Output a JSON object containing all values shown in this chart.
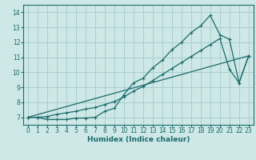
{
  "xlabel": "Humidex (Indice chaleur)",
  "bg_color": "#cde8e6",
  "grid_color": "#aacece",
  "line_color": "#1a6b6b",
  "x_ticks": [
    0,
    1,
    2,
    3,
    4,
    5,
    6,
    7,
    8,
    9,
    10,
    11,
    12,
    13,
    14,
    15,
    16,
    17,
    18,
    19,
    20,
    21,
    22,
    23
  ],
  "y_ticks": [
    7,
    8,
    9,
    10,
    11,
    12,
    13,
    14
  ],
  "xlim": [
    -0.5,
    23.5
  ],
  "ylim": [
    6.5,
    14.5
  ],
  "line1": {
    "x": [
      0,
      1,
      2,
      3,
      4,
      5,
      6,
      7,
      8,
      9,
      10,
      11,
      12,
      13,
      14,
      15,
      16,
      17,
      18,
      19,
      20,
      21,
      22,
      23
    ],
    "y": [
      7.0,
      7.0,
      6.85,
      6.85,
      6.85,
      6.95,
      6.95,
      7.0,
      7.4,
      7.6,
      8.5,
      9.3,
      9.6,
      10.3,
      10.8,
      11.5,
      12.0,
      12.65,
      13.1,
      13.8,
      12.5,
      12.2,
      9.3,
      11.1
    ]
  },
  "line2": {
    "x": [
      0,
      1,
      2,
      3,
      4,
      5,
      6,
      7,
      8,
      9,
      10,
      11,
      12,
      13,
      14,
      15,
      16,
      17,
      18,
      19,
      20,
      21,
      22,
      23
    ],
    "y": [
      7.0,
      7.0,
      7.05,
      7.2,
      7.3,
      7.4,
      7.55,
      7.65,
      7.85,
      8.05,
      8.35,
      8.75,
      9.05,
      9.45,
      9.85,
      10.25,
      10.65,
      11.05,
      11.45,
      11.85,
      12.25,
      10.2,
      9.3,
      11.1
    ]
  },
  "line3": {
    "x": [
      0,
      23
    ],
    "y": [
      7.0,
      11.1
    ]
  }
}
